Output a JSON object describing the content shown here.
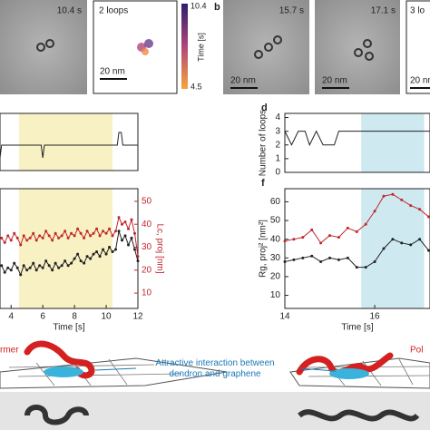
{
  "images": {
    "b_label": "b",
    "frame_times": [
      "10.4 s",
      "15.7 s",
      "17.1 s"
    ],
    "trace_label": "2 loops",
    "trace_label_2": "3 lo",
    "scale_bars": [
      "20 nm",
      "20 nm",
      "20 nm",
      "20 nm"
    ],
    "colorbar": {
      "top": "10.4",
      "bottom": "4.5",
      "label": "Time [s]"
    }
  },
  "illustration": {
    "left_label": "rmer",
    "center_label": "Attractive interaction between\ndendron and graphene",
    "right_label": "Pol"
  },
  "chart_data": [
    {
      "type": "line",
      "x": [
        3.3,
        3.4,
        5.9,
        6.0,
        6.1,
        10.7,
        10.8,
        10.95,
        11.05,
        12
      ],
      "series": [
        {
          "color": "#222222",
          "values": [
            1,
            2,
            2,
            1,
            2,
            2,
            3,
            3,
            2,
            2
          ]
        }
      ],
      "xlim": [
        3.3,
        12
      ],
      "ylim": [
        0,
        4.5
      ],
      "span": [
        4.5,
        10.4
      ],
      "span_color": "#f8f1c4"
    },
    {
      "type": "line",
      "xlabel": "Time [s]",
      "y2label": "Lc, proj [nm]",
      "x": [
        3.4,
        3.6,
        3.8,
        4.0,
        4.2,
        4.4,
        4.6,
        4.8,
        5.0,
        5.2,
        5.4,
        5.6,
        5.8,
        6.0,
        6.2,
        6.4,
        6.6,
        6.8,
        7.0,
        7.2,
        7.4,
        7.6,
        7.8,
        8.0,
        8.2,
        8.4,
        8.6,
        8.8,
        9.0,
        9.2,
        9.4,
        9.6,
        9.8,
        10.0,
        10.2,
        10.4,
        10.6,
        10.8,
        11.0,
        11.2,
        11.4,
        11.6,
        11.8,
        12.0
      ],
      "series": [
        {
          "color": "#c0272d",
          "axis": "y2",
          "values": [
            34,
            32,
            35,
            33,
            36,
            34,
            31,
            35,
            33,
            34,
            36,
            33,
            35,
            34,
            37,
            35,
            33,
            36,
            34,
            35,
            37,
            34,
            36,
            35,
            38,
            36,
            34,
            37,
            35,
            36,
            38,
            35,
            37,
            36,
            38,
            35,
            37,
            43,
            40,
            41,
            38,
            42,
            36,
            26
          ]
        },
        {
          "color": "#222222",
          "values": [
            22,
            19,
            21,
            20,
            23,
            21,
            18,
            22,
            20,
            21,
            23,
            20,
            22,
            21,
            24,
            22,
            20,
            23,
            21,
            22,
            24,
            22,
            23,
            25,
            27,
            24,
            23,
            26,
            25,
            27,
            28,
            26,
            29,
            27,
            30,
            28,
            29,
            37,
            33,
            35,
            31,
            34,
            29,
            24
          ]
        }
      ],
      "xlim": [
        3.3,
        12
      ],
      "xticks": [
        4,
        6,
        8,
        10,
        12
      ],
      "ylim": [
        3.3,
        55.5
      ],
      "y2lim": [
        3.3,
        55.5
      ],
      "y2ticks": [
        10,
        20,
        30,
        40,
        50
      ],
      "markers": true,
      "span": [
        4.5,
        10.4
      ],
      "span_color": "#f8f1c4"
    },
    {
      "type": "line",
      "panel": "d",
      "ylabel": "Number of loops",
      "x": [
        14.0,
        14.15,
        14.3,
        14.45,
        14.55,
        14.7,
        14.85,
        15.1,
        15.2,
        17.23
      ],
      "series": [
        {
          "color": "#222222",
          "values": [
            3,
            2,
            3,
            3,
            2,
            3,
            2,
            2,
            3,
            3
          ]
        }
      ],
      "xlim": [
        14,
        17.23
      ],
      "ylim": [
        0,
        4.3
      ],
      "yticks": [
        0,
        1,
        2,
        3,
        4
      ],
      "span": [
        15.7,
        17.1
      ],
      "span_color": "#cfe9f1"
    },
    {
      "type": "line",
      "panel": "f",
      "xlabel": "Time [s]",
      "ylabel": "Rg, proj² [nm²]",
      "x": [
        14.0,
        14.2,
        14.4,
        14.6,
        14.8,
        15.0,
        15.2,
        15.4,
        15.6,
        15.8,
        16.0,
        16.2,
        16.4,
        16.6,
        16.8,
        17.0,
        17.2
      ],
      "series": [
        {
          "color": "#c0272d",
          "values": [
            39,
            40,
            41,
            45,
            38,
            42,
            41,
            46,
            44,
            48,
            55,
            63,
            64,
            61,
            58,
            56,
            52
          ]
        },
        {
          "color": "#222222",
          "values": [
            28,
            29,
            30,
            31,
            28,
            30,
            29,
            30,
            25,
            25,
            28,
            35,
            40,
            38,
            37,
            40,
            34
          ]
        }
      ],
      "xlim": [
        14,
        17.23
      ],
      "xticks": [
        14,
        16
      ],
      "ylim": [
        3,
        67
      ],
      "yticks": [
        10,
        20,
        30,
        40,
        50,
        60
      ],
      "markers": true,
      "span": [
        15.7,
        17.1
      ],
      "span_color": "#cfe9f1"
    }
  ]
}
